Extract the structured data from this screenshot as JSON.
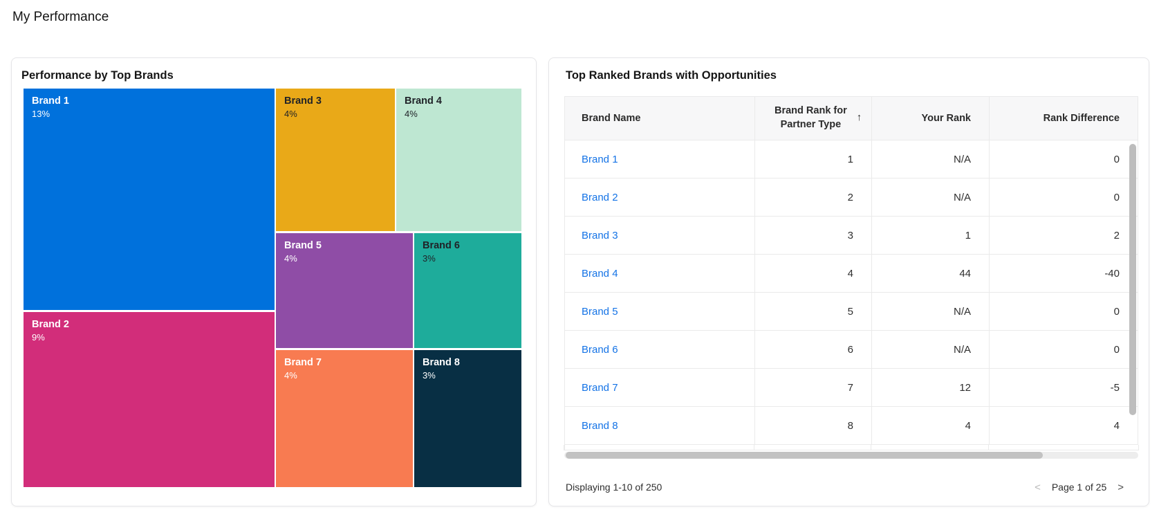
{
  "page": {
    "title": "My Performance"
  },
  "treemap_card": {
    "title": "Performance by Top Brands"
  },
  "chart_data": {
    "type": "treemap",
    "title": "Performance by Top Brands",
    "unit": "%",
    "items": [
      {
        "label": "Brand 1",
        "value": 13,
        "pct_label": "13%",
        "color": "#0071DC",
        "text_color": "#FFFFFF"
      },
      {
        "label": "Brand 2",
        "value": 9,
        "pct_label": "9%",
        "color": "#D22D7A",
        "text_color": "#FFFFFF"
      },
      {
        "label": "Brand 3",
        "value": 4,
        "pct_label": "4%",
        "color": "#E9A918",
        "text_color": "#202328"
      },
      {
        "label": "Brand 4",
        "value": 4,
        "pct_label": "4%",
        "color": "#BEE7D2",
        "text_color": "#202328"
      },
      {
        "label": "Brand 5",
        "value": 4,
        "pct_label": "4%",
        "color": "#8F4DA6",
        "text_color": "#FFFFFF"
      },
      {
        "label": "Brand 6",
        "value": 3,
        "pct_label": "3%",
        "color": "#1EAC9B",
        "text_color": "#202328"
      },
      {
        "label": "Brand 7",
        "value": 4,
        "pct_label": "4%",
        "color": "#F87B51",
        "text_color": "#FFFFFF"
      },
      {
        "label": "Brand 8",
        "value": 3,
        "pct_label": "3%",
        "color": "#082F44",
        "text_color": "#FFFFFF"
      }
    ]
  },
  "table_card": {
    "title": "Top Ranked Brands with Opportunities",
    "columns": [
      {
        "label": "Brand Name"
      },
      {
        "label": "Brand Rank for Partner Type",
        "sort_indicator": "↑"
      },
      {
        "label": "Your Rank"
      },
      {
        "label": "Rank Difference"
      }
    ],
    "rows": [
      {
        "brand": "Brand 1",
        "brand_rank": "1",
        "your_rank": "N/A",
        "rank_diff": "0"
      },
      {
        "brand": "Brand 2",
        "brand_rank": "2",
        "your_rank": "N/A",
        "rank_diff": "0"
      },
      {
        "brand": "Brand 3",
        "brand_rank": "3",
        "your_rank": "1",
        "rank_diff": "2"
      },
      {
        "brand": "Brand 4",
        "brand_rank": "4",
        "your_rank": "44",
        "rank_diff": "-40"
      },
      {
        "brand": "Brand 5",
        "brand_rank": "5",
        "your_rank": "N/A",
        "rank_diff": "0"
      },
      {
        "brand": "Brand 6",
        "brand_rank": "6",
        "your_rank": "N/A",
        "rank_diff": "0"
      },
      {
        "brand": "Brand 7",
        "brand_rank": "7",
        "your_rank": "12",
        "rank_diff": "-5"
      },
      {
        "brand": "Brand 8",
        "brand_rank": "8",
        "your_rank": "4",
        "rank_diff": "4"
      }
    ],
    "footer": {
      "displaying": "Displaying 1-10 of 250",
      "prev_label": "<",
      "page_label": "Page 1 of 25",
      "next_label": ">"
    }
  }
}
